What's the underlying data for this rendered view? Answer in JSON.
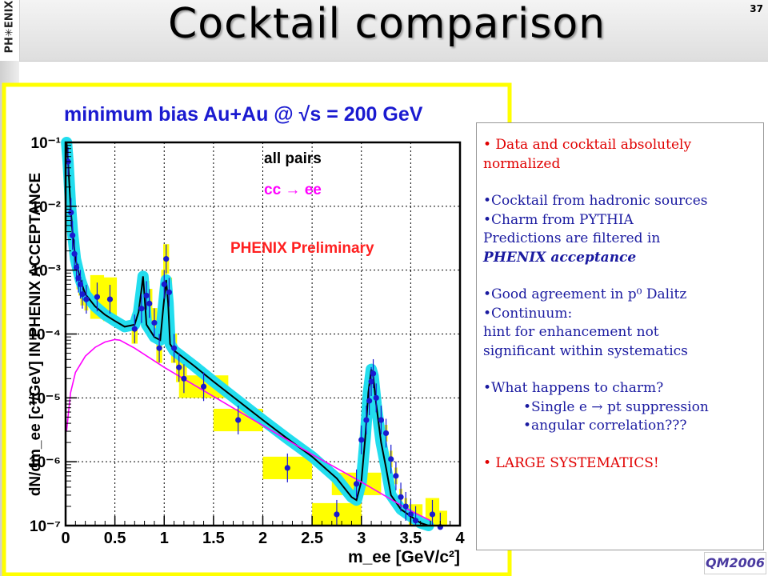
{
  "page": {
    "title": "Cocktail comparison",
    "page_number": "37",
    "logo_text": "PH✳ENIX",
    "conference_logo_text": "QM2006"
  },
  "colors": {
    "data_points": "#1a1ad0",
    "syst_box": "#ffff00",
    "cocktail_band": "#22ddee",
    "cocktail_line": "#000000",
    "charm_line": "#ff00ff",
    "title_text": "#1a1ad0",
    "preliminary_text": "#ff2020",
    "text_red": "#e00000",
    "text_blue": "#1a1aa0",
    "plot_frame": "#ffff00"
  },
  "chart_data": {
    "type": "scatter",
    "title": "minimum bias Au+Au @ √s = 200 GeV",
    "xlabel": "m_ee [GeV/c²]",
    "ylabel": "dN/dm_ee [c²/GeV] IN PHENIX ACCEPTANCE",
    "xlim": [
      0,
      4
    ],
    "ylim": [
      1e-07,
      0.1
    ],
    "y_scale": "log",
    "grid": true,
    "x_ticks": [
      "0",
      "0.5",
      "1",
      "1.5",
      "2",
      "2.5",
      "3",
      "3.5",
      "4"
    ],
    "y_ticks": [
      "10⁻¹",
      "10⁻²",
      "10⁻³",
      "10⁻⁴",
      "10⁻⁵",
      "10⁻⁶",
      "10⁻⁷"
    ],
    "legend": {
      "placement": "top-right",
      "entries": [
        "all pairs",
        "cc → ee"
      ]
    },
    "annotation": "PHENIX Preliminary",
    "series": [
      {
        "name": "all pairs",
        "kind": "data",
        "points": [
          [
            0.025,
            0.05
          ],
          [
            0.055,
            0.008
          ],
          [
            0.07,
            0.0035
          ],
          [
            0.09,
            0.0018
          ],
          [
            0.11,
            0.0011
          ],
          [
            0.13,
            0.00075
          ],
          [
            0.15,
            0.0006
          ],
          [
            0.17,
            0.00042
          ],
          [
            0.21,
            0.00035
          ],
          [
            0.32,
            0.00038
          ],
          [
            0.45,
            0.00035
          ],
          [
            0.7,
            0.00012
          ],
          [
            0.77,
            0.00025
          ],
          [
            0.82,
            0.0004
          ],
          [
            0.85,
            0.0003
          ],
          [
            0.9,
            0.00015
          ],
          [
            0.95,
            6e-05
          ],
          [
            1.0,
            0.0006
          ],
          [
            1.02,
            0.0015
          ],
          [
            1.05,
            0.00045
          ],
          [
            1.1,
            6e-05
          ],
          [
            1.15,
            3e-05
          ],
          [
            1.2,
            2e-05
          ],
          [
            1.4,
            1.5e-05
          ],
          [
            1.75,
            4.5e-06
          ],
          [
            2.25,
            8e-07
          ],
          [
            2.75,
            1.5e-07
          ],
          [
            2.95,
            4.5e-07
          ],
          [
            3.0,
            2.2e-06
          ],
          [
            3.05,
            4.5e-06
          ],
          [
            3.08,
            9e-06
          ],
          [
            3.1,
            1.8e-05
          ],
          [
            3.12,
            2.4e-05
          ],
          [
            3.15,
            1e-05
          ],
          [
            3.2,
            4.5e-06
          ],
          [
            3.25,
            2.8e-06
          ],
          [
            3.3,
            1.1e-06
          ],
          [
            3.35,
            6e-07
          ],
          [
            3.4,
            2.8e-07
          ],
          [
            3.45,
            2e-07
          ],
          [
            3.5,
            1.5e-07
          ],
          [
            3.55,
            1.2e-07
          ],
          [
            3.72,
            1.5e-07
          ],
          [
            3.8,
            9.5e-08
          ]
        ]
      },
      {
        "name": "cocktail",
        "kind": "line",
        "points": [
          [
            0.01,
            0.1
          ],
          [
            0.025,
            0.05
          ],
          [
            0.05,
            0.01
          ],
          [
            0.07,
            0.004
          ],
          [
            0.1,
            0.0015
          ],
          [
            0.15,
            0.0007
          ],
          [
            0.2,
            0.00042
          ],
          [
            0.3,
            0.00027
          ],
          [
            0.4,
            0.0002
          ],
          [
            0.5,
            0.00016
          ],
          [
            0.6,
            0.00013
          ],
          [
            0.7,
            0.00014
          ],
          [
            0.74,
            0.00022
          ],
          [
            0.77,
            0.0005
          ],
          [
            0.785,
            0.0008
          ],
          [
            0.8,
            0.0004
          ],
          [
            0.82,
            0.00014
          ],
          [
            0.9,
            9e-05
          ],
          [
            0.96,
            8e-05
          ],
          [
            0.99,
            0.00025
          ],
          [
            1.02,
            0.0007
          ],
          [
            1.04,
            0.0003
          ],
          [
            1.06,
            7e-05
          ],
          [
            1.1,
            5.5e-05
          ],
          [
            1.3,
            3.2e-05
          ],
          [
            1.5,
            1.8e-05
          ],
          [
            1.75,
            9e-06
          ],
          [
            2.0,
            4.5e-06
          ],
          [
            2.25,
            2.3e-06
          ],
          [
            2.5,
            1.2e-06
          ],
          [
            2.75,
            5.5e-07
          ],
          [
            2.9,
            2.8e-07
          ],
          [
            2.95,
            2.5e-07
          ],
          [
            3.0,
            5e-07
          ],
          [
            3.04,
            2.5e-06
          ],
          [
            3.07,
            1.2e-05
          ],
          [
            3.1,
            2.8e-05
          ],
          [
            3.12,
            2.2e-05
          ],
          [
            3.15,
            8e-06
          ],
          [
            3.2,
            2e-06
          ],
          [
            3.25,
            8e-07
          ],
          [
            3.3,
            3e-07
          ],
          [
            3.4,
            1.8e-07
          ],
          [
            3.5,
            1.4e-07
          ],
          [
            3.6,
            1.1e-07
          ],
          [
            3.68,
            1e-07
          ]
        ]
      },
      {
        "name": "cc → ee",
        "kind": "line",
        "points": [
          [
            0.01,
            3e-06
          ],
          [
            0.05,
            1.2e-05
          ],
          [
            0.1,
            2.5e-05
          ],
          [
            0.2,
            4.5e-05
          ],
          [
            0.3,
            6.2e-05
          ],
          [
            0.4,
            7.5e-05
          ],
          [
            0.5,
            8.2e-05
          ],
          [
            0.55,
            8e-05
          ],
          [
            0.7,
            6e-05
          ],
          [
            1.0,
            3e-05
          ],
          [
            1.5,
            1.05e-05
          ],
          [
            2.0,
            3.7e-06
          ],
          [
            2.5,
            1.3e-06
          ],
          [
            3.0,
            4.8e-07
          ],
          [
            3.5,
            1.7e-07
          ],
          [
            3.7,
            1.2e-07
          ]
        ]
      }
    ]
  },
  "textbox": {
    "lines": [
      {
        "text": "• Data and cocktail absolutely",
        "color": "red"
      },
      {
        "text": "normalized",
        "color": "red"
      },
      {
        "text": "",
        "color": "none"
      },
      {
        "text": "•Cocktail from hadronic sources",
        "color": "blue"
      },
      {
        "text": "•Charm from PYTHIA",
        "color": "blue"
      },
      {
        "text": "Predictions are filtered in",
        "color": "blue"
      },
      {
        "text": "PHENIX acceptance",
        "color": "blue"
      },
      {
        "text": "",
        "color": "none"
      },
      {
        "text": "•Good agreement in p⁰ Dalitz",
        "color": "blue"
      },
      {
        "text": "•Continuum:",
        "color": "blue"
      },
      {
        "text": "hint for enhancement not",
        "color": "blue"
      },
      {
        "text": "significant within systematics",
        "color": "blue"
      },
      {
        "text": "",
        "color": "none"
      },
      {
        "text": "•What happens to charm?",
        "color": "blue"
      },
      {
        "text": "•Single e → pt suppression",
        "color": "blue",
        "indent": true
      },
      {
        "text": "•angular correlation???",
        "color": "blue",
        "indent": true
      },
      {
        "text": "",
        "color": "none"
      },
      {
        "text": "•  LARGE SYSTEMATICS!",
        "color": "red"
      }
    ]
  }
}
